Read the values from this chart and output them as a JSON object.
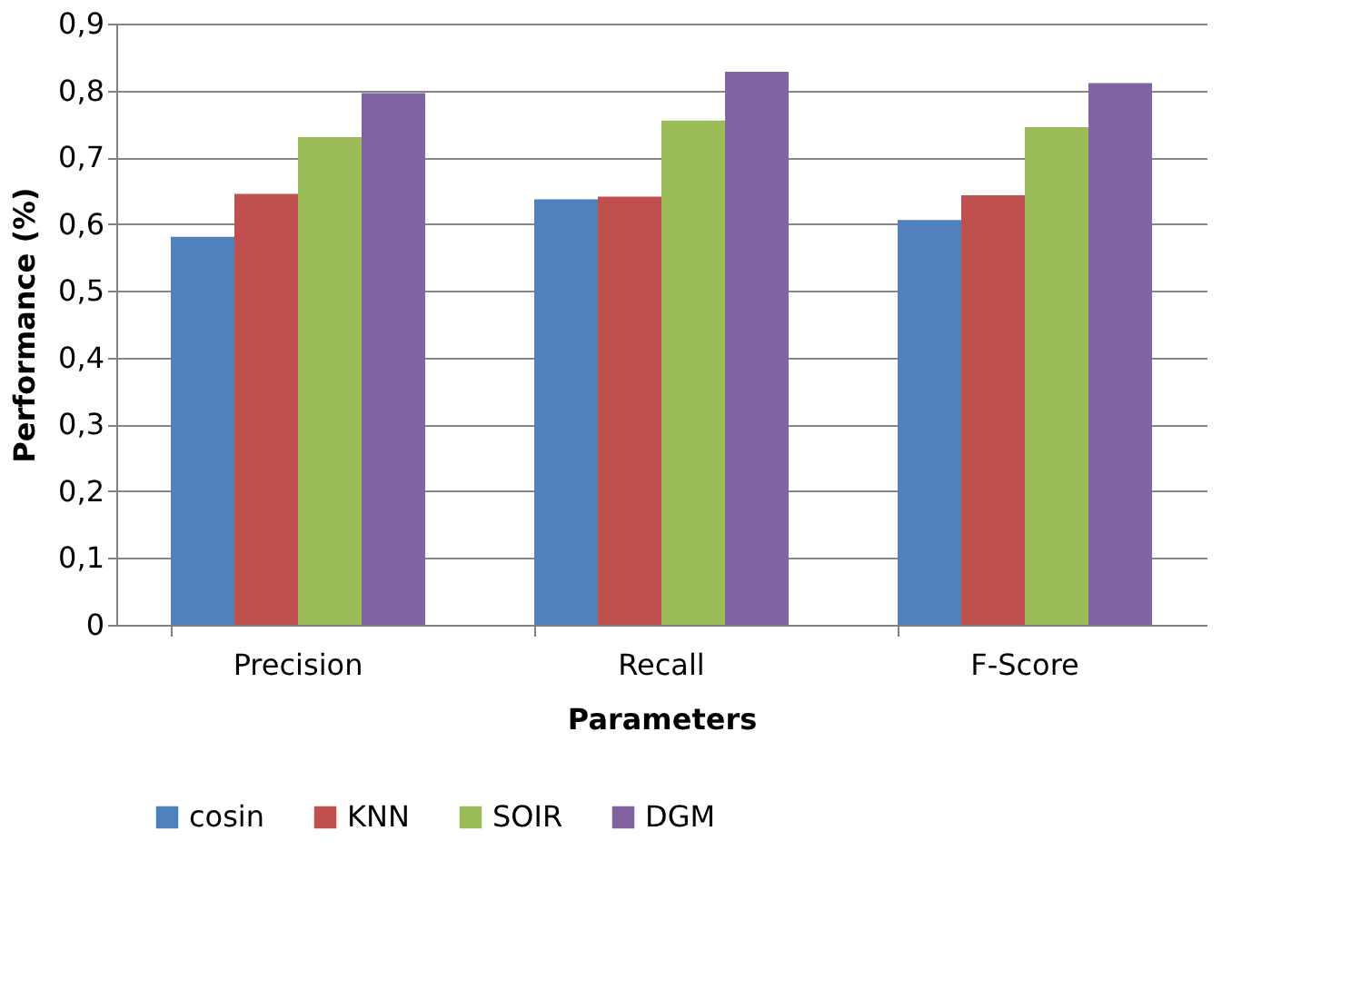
{
  "chart_data": {
    "type": "bar",
    "xlabel": "Parameters",
    "ylabel": "Performance (%)",
    "categories": [
      "Precision",
      "Recall",
      "F-Score"
    ],
    "series": [
      {
        "name": "cosin",
        "color": "#4f81bd",
        "values": [
          0.581,
          0.637,
          0.606
        ]
      },
      {
        "name": "KNN",
        "color": "#c0504d",
        "values": [
          0.645,
          0.641,
          0.643
        ]
      },
      {
        "name": "SOIR",
        "color": "#9bbb59",
        "values": [
          0.73,
          0.755,
          0.745
        ]
      },
      {
        "name": "DGM",
        "color": "#8064a2",
        "values": [
          0.796,
          0.828,
          0.811
        ]
      }
    ],
    "ylim": [
      0,
      0.9
    ],
    "yticks": [
      0,
      {
        "value": 0.1,
        "label": "0,1"
      },
      {
        "value": 0.2,
        "label": "0,2"
      },
      {
        "value": 0.3,
        "label": "0,3"
      },
      {
        "value": 0.4,
        "label": "0,4"
      },
      {
        "value": 0.5,
        "label": "0,5"
      },
      {
        "value": 0.6,
        "label": "0,6"
      },
      {
        "value": 0.7,
        "label": "0,7"
      },
      {
        "value": 0.8,
        "label": "0,8"
      },
      {
        "value": 0.9,
        "label": "0,9"
      }
    ],
    "grid": "y",
    "legend": "bottom"
  }
}
